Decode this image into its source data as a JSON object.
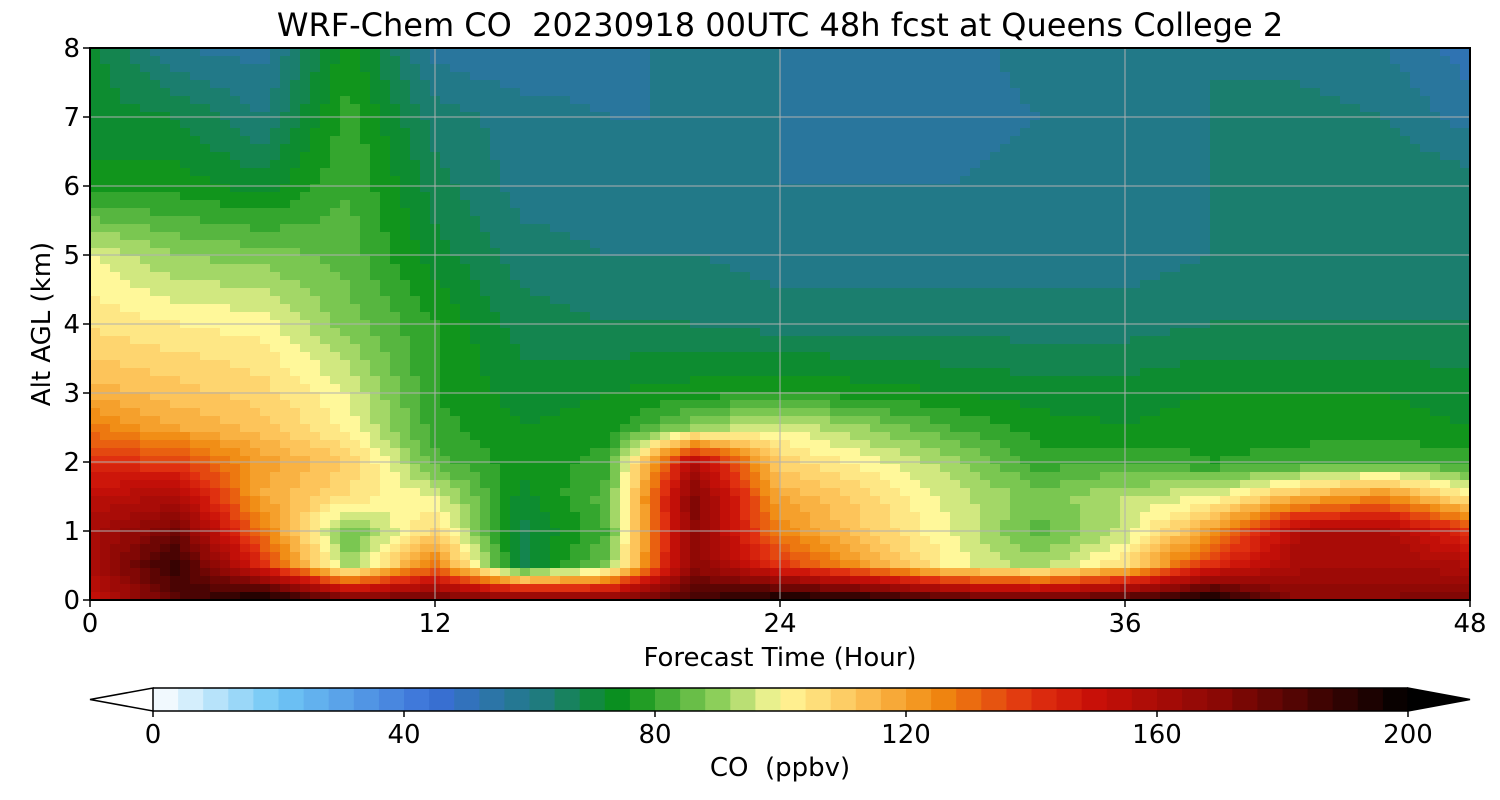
{
  "chart_data": {
    "type": "heatmap",
    "title": "WRF-Chem CO  20230918 00UTC 48h fcst at Queens College 2",
    "xlabel": "Forecast Time (Hour)",
    "ylabel": "Alt AGL (km)",
    "xlim": [
      0,
      48
    ],
    "ylim": [
      0,
      8
    ],
    "x_ticks": [
      0,
      12,
      24,
      36,
      48
    ],
    "y_ticks": [
      0,
      1,
      2,
      3,
      4,
      5,
      6,
      7,
      8
    ],
    "grid": true,
    "colorbar": {
      "label": "CO  (ppbv)",
      "vmin": 0,
      "vmax": 200,
      "ticks": [
        0,
        40,
        80,
        120,
        160,
        200
      ],
      "extend": "both",
      "color_stops": [
        {
          "v": 0,
          "c": "#ffffff"
        },
        {
          "v": 20,
          "c": "#6fc6f5"
        },
        {
          "v": 45,
          "c": "#3a6ed6"
        },
        {
          "v": 62,
          "c": "#1f7b7e"
        },
        {
          "v": 75,
          "c": "#089118"
        },
        {
          "v": 90,
          "c": "#8ccf5a"
        },
        {
          "v": 100,
          "c": "#fff89a"
        },
        {
          "v": 112,
          "c": "#fdc45a"
        },
        {
          "v": 125,
          "c": "#f08a10"
        },
        {
          "v": 140,
          "c": "#e03010"
        },
        {
          "v": 150,
          "c": "#c81008"
        },
        {
          "v": 170,
          "c": "#8a0805"
        },
        {
          "v": 200,
          "c": "#000000"
        }
      ]
    },
    "x": [
      0,
      3,
      6,
      9,
      12,
      15,
      18,
      21,
      24,
      27,
      30,
      33,
      36,
      39,
      42,
      45,
      48
    ],
    "y": [
      0,
      0.5,
      1,
      1.5,
      2,
      2.5,
      3,
      4,
      5,
      6,
      7,
      8
    ],
    "z": [
      [
        150,
        180,
        200,
        178,
        178,
        175,
        172,
        185,
        198,
        196,
        185,
        180,
        186,
        198,
        170,
        170,
        175
      ],
      [
        160,
        190,
        142,
        90,
        128,
        68,
        88,
        170,
        140,
        120,
        100,
        92,
        106,
        142,
        160,
        162,
        158
      ],
      [
        160,
        175,
        128,
        85,
        108,
        68,
        82,
        170,
        125,
        110,
        98,
        84,
        95,
        120,
        158,
        160,
        140
      ],
      [
        155,
        158,
        118,
        105,
        98,
        72,
        84,
        172,
        118,
        108,
        96,
        88,
        94,
        98,
        115,
        125,
        102
      ],
      [
        140,
        138,
        120,
        110,
        84,
        75,
        80,
        158,
        108,
        100,
        92,
        80,
        82,
        78,
        80,
        82,
        80
      ],
      [
        128,
        118,
        112,
        100,
        80,
        74,
        76,
        90,
        98,
        90,
        82,
        76,
        74,
        76,
        76,
        76,
        74
      ],
      [
        116,
        112,
        108,
        98,
        78,
        72,
        74,
        76,
        78,
        76,
        74,
        72,
        72,
        74,
        74,
        74,
        72
      ],
      [
        105,
        102,
        100,
        88,
        78,
        68,
        66,
        66,
        64,
        64,
        64,
        64,
        64,
        66,
        66,
        66,
        66
      ],
      [
        98,
        90,
        88,
        84,
        72,
        64,
        62,
        62,
        60,
        60,
        60,
        60,
        60,
        62,
        64,
        64,
        64
      ],
      [
        75,
        76,
        72,
        82,
        68,
        60,
        60,
        60,
        58,
        58,
        58,
        60,
        60,
        62,
        66,
        66,
        64
      ],
      [
        72,
        70,
        62,
        80,
        64,
        60,
        58,
        58,
        58,
        56,
        56,
        58,
        58,
        62,
        64,
        62,
        56
      ],
      [
        72,
        58,
        56,
        76,
        56,
        54,
        56,
        60,
        58,
        56,
        56,
        60,
        60,
        62,
        60,
        58,
        52
      ]
    ]
  }
}
